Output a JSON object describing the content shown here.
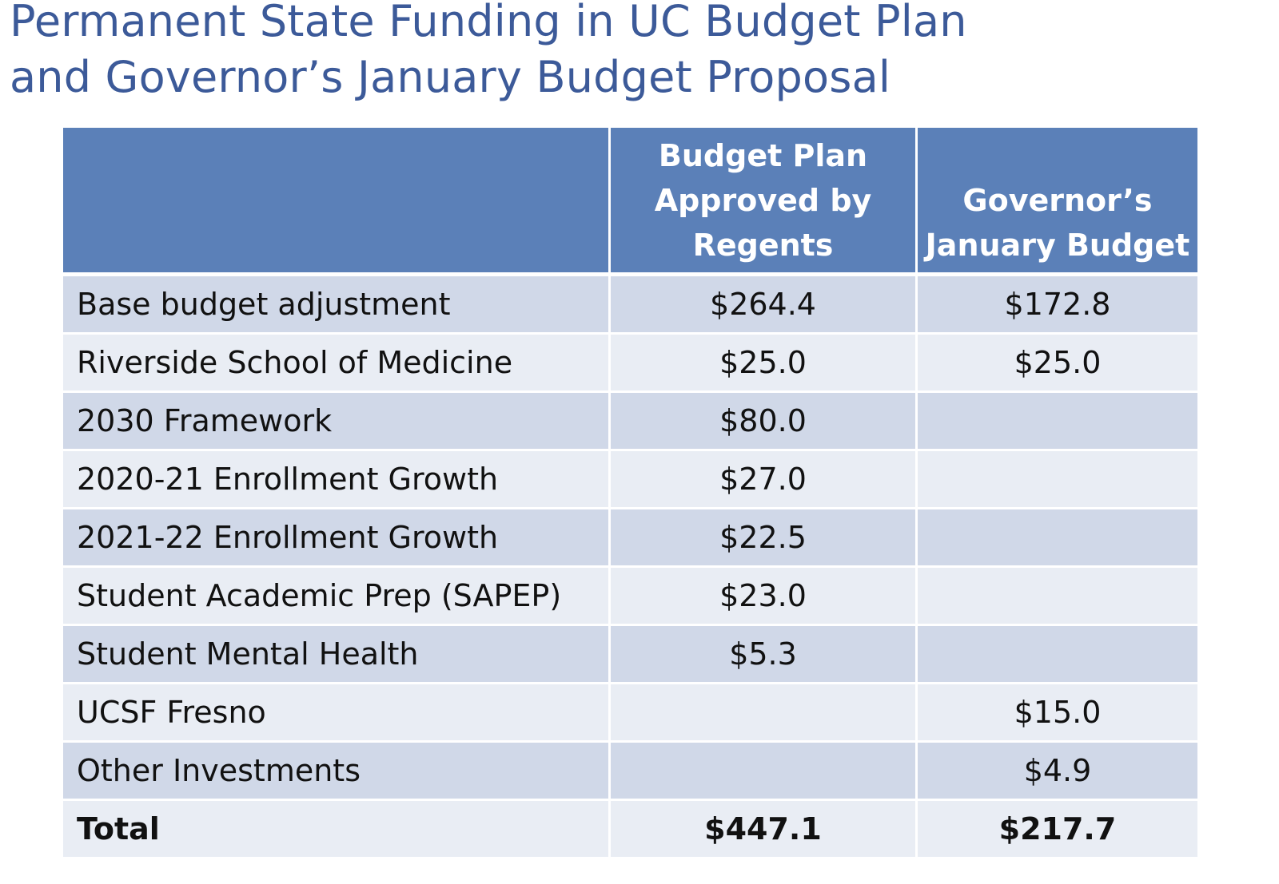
{
  "title": {
    "line1": "Permanent State Funding in UC Budget Plan",
    "line2": "and Governor’s January Budget Proposal"
  },
  "table": {
    "headers": {
      "col1": "",
      "col2": [
        "Budget Plan",
        "Approved by",
        "Regents"
      ],
      "col3": [
        "Governor’s",
        "January Budget"
      ]
    },
    "rows": [
      {
        "label": "Base budget adjustment",
        "regents": "$264.4",
        "governor": "$172.8"
      },
      {
        "label": "Riverside School of Medicine",
        "regents": "$25.0",
        "governor": "$25.0"
      },
      {
        "label": "2030 Framework",
        "regents": "$80.0",
        "governor": ""
      },
      {
        "label": "2020-21 Enrollment Growth",
        "regents": "$27.0",
        "governor": ""
      },
      {
        "label": "2021-22 Enrollment Growth",
        "regents": "$22.5",
        "governor": ""
      },
      {
        "label": "Student Academic Prep (SAPEP)",
        "regents": "$23.0",
        "governor": ""
      },
      {
        "label": "Student Mental Health",
        "regents": "$5.3",
        "governor": ""
      },
      {
        "label": "UCSF Fresno",
        "regents": "",
        "governor": "$15.0"
      },
      {
        "label": "Other Investments",
        "regents": "",
        "governor": "$4.9"
      },
      {
        "label": "Total",
        "regents": "$447.1",
        "governor": "$217.7"
      }
    ]
  },
  "colors": {
    "title": "#3c5a99",
    "header_bg": "#5b80b8",
    "row_dark": "#d0d8e8",
    "row_light": "#e9edf4"
  }
}
